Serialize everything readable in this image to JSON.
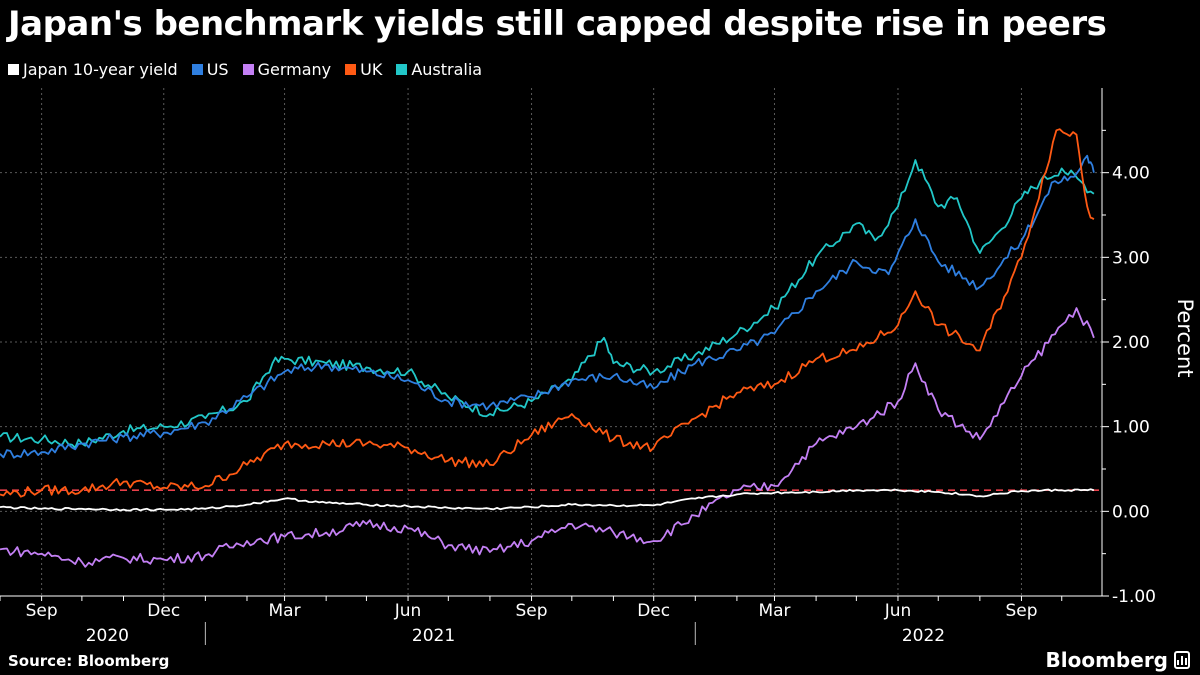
{
  "title": "Japan's benchmark yields still capped despite rise in peers",
  "source": "Source: Bloomberg",
  "brand": "Bloomberg",
  "chart_data": {
    "type": "line",
    "ylabel": "Percent",
    "ylim": [
      -1.0,
      5.0
    ],
    "y_ticks": [
      -1.0,
      0.0,
      1.0,
      2.0,
      3.0,
      4.0
    ],
    "y_tick_labels": [
      "-1.00",
      "0.00",
      "1.00",
      "2.00",
      "3.00",
      "4.00"
    ],
    "x_ticks": [
      {
        "date": "2020-09-01",
        "label": "Sep"
      },
      {
        "date": "2020-12-01",
        "label": "Dec"
      },
      {
        "date": "2021-03-01",
        "label": "Mar"
      },
      {
        "date": "2021-06-01",
        "label": "Jun"
      },
      {
        "date": "2021-09-01",
        "label": "Sep"
      },
      {
        "date": "2021-12-01",
        "label": "Dec"
      },
      {
        "date": "2022-03-01",
        "label": "Mar"
      },
      {
        "date": "2022-06-01",
        "label": "Jun"
      },
      {
        "date": "2022-09-01",
        "label": "Sep"
      }
    ],
    "year_labels": [
      {
        "label": "2020",
        "date": "2020-10-20"
      },
      {
        "label": "2021",
        "date": "2021-06-20"
      },
      {
        "label": "2022",
        "date": "2022-06-20"
      }
    ],
    "year_dividers": [
      "2021-01-01",
      "2022-01-01"
    ],
    "x_range": [
      "2020-08-01",
      "2022-10-31"
    ],
    "grid": true,
    "legend_position": "top-left",
    "reference_line": {
      "value": 0.25,
      "color": "#e8404a",
      "style": "dashed"
    },
    "series": [
      {
        "name": "Australia",
        "color": "#22c7c8",
        "points": [
          [
            "2020-08-01",
            0.88
          ],
          [
            "2020-09-01",
            0.85
          ],
          [
            "2020-10-01",
            0.8
          ],
          [
            "2020-11-01",
            0.95
          ],
          [
            "2020-12-01",
            1.0
          ],
          [
            "2021-01-01",
            1.1
          ],
          [
            "2021-02-01",
            1.3
          ],
          [
            "2021-02-20",
            1.75
          ],
          [
            "2021-03-01",
            1.8
          ],
          [
            "2021-04-01",
            1.75
          ],
          [
            "2021-05-01",
            1.7
          ],
          [
            "2021-06-01",
            1.65
          ],
          [
            "2021-07-01",
            1.35
          ],
          [
            "2021-08-01",
            1.15
          ],
          [
            "2021-09-01",
            1.3
          ],
          [
            "2021-10-01",
            1.55
          ],
          [
            "2021-10-25",
            2.05
          ],
          [
            "2021-11-01",
            1.75
          ],
          [
            "2021-12-01",
            1.65
          ],
          [
            "2022-01-01",
            1.85
          ],
          [
            "2022-02-01",
            2.1
          ],
          [
            "2022-03-01",
            2.4
          ],
          [
            "2022-04-01",
            3.0
          ],
          [
            "2022-05-01",
            3.4
          ],
          [
            "2022-05-15",
            3.2
          ],
          [
            "2022-06-01",
            3.6
          ],
          [
            "2022-06-14",
            4.15
          ],
          [
            "2022-07-01",
            3.6
          ],
          [
            "2022-07-15",
            3.7
          ],
          [
            "2022-08-01",
            3.05
          ],
          [
            "2022-08-15",
            3.3
          ],
          [
            "2022-09-01",
            3.7
          ],
          [
            "2022-09-15",
            3.9
          ],
          [
            "2022-10-01",
            4.05
          ],
          [
            "2022-10-15",
            3.9
          ],
          [
            "2022-10-25",
            3.75
          ]
        ]
      },
      {
        "name": "US",
        "color": "#2f7fe0",
        "points": [
          [
            "2020-08-01",
            0.68
          ],
          [
            "2020-09-01",
            0.7
          ],
          [
            "2020-10-01",
            0.8
          ],
          [
            "2020-11-01",
            0.88
          ],
          [
            "2020-12-01",
            0.93
          ],
          [
            "2021-01-01",
            1.05
          ],
          [
            "2021-02-01",
            1.35
          ],
          [
            "2021-03-01",
            1.65
          ],
          [
            "2021-03-31",
            1.73
          ],
          [
            "2021-05-01",
            1.65
          ],
          [
            "2021-06-01",
            1.55
          ],
          [
            "2021-07-01",
            1.3
          ],
          [
            "2021-08-01",
            1.25
          ],
          [
            "2021-09-01",
            1.35
          ],
          [
            "2021-10-01",
            1.55
          ],
          [
            "2021-11-01",
            1.6
          ],
          [
            "2021-12-01",
            1.45
          ],
          [
            "2022-01-01",
            1.75
          ],
          [
            "2022-02-01",
            1.9
          ],
          [
            "2022-03-01",
            2.1
          ],
          [
            "2022-04-01",
            2.6
          ],
          [
            "2022-05-01",
            2.95
          ],
          [
            "2022-05-25",
            2.8
          ],
          [
            "2022-06-14",
            3.45
          ],
          [
            "2022-07-01",
            2.95
          ],
          [
            "2022-08-01",
            2.65
          ],
          [
            "2022-09-01",
            3.2
          ],
          [
            "2022-09-26",
            3.9
          ],
          [
            "2022-10-10",
            3.95
          ],
          [
            "2022-10-20",
            4.2
          ],
          [
            "2022-10-25",
            4.0
          ]
        ]
      },
      {
        "name": "UK",
        "color": "#ff5a14",
        "points": [
          [
            "2020-08-01",
            0.2
          ],
          [
            "2020-09-01",
            0.25
          ],
          [
            "2020-10-01",
            0.25
          ],
          [
            "2020-11-01",
            0.35
          ],
          [
            "2020-12-01",
            0.28
          ],
          [
            "2021-01-01",
            0.3
          ],
          [
            "2021-02-01",
            0.55
          ],
          [
            "2021-03-01",
            0.8
          ],
          [
            "2021-04-01",
            0.8
          ],
          [
            "2021-05-01",
            0.8
          ],
          [
            "2021-06-01",
            0.75
          ],
          [
            "2021-07-01",
            0.6
          ],
          [
            "2021-08-01",
            0.55
          ],
          [
            "2021-09-01",
            0.9
          ],
          [
            "2021-10-01",
            1.15
          ],
          [
            "2021-11-01",
            0.85
          ],
          [
            "2021-12-01",
            0.75
          ],
          [
            "2022-01-01",
            1.1
          ],
          [
            "2022-02-01",
            1.4
          ],
          [
            "2022-03-01",
            1.5
          ],
          [
            "2022-04-01",
            1.8
          ],
          [
            "2022-05-01",
            1.9
          ],
          [
            "2022-06-01",
            2.2
          ],
          [
            "2022-06-14",
            2.6
          ],
          [
            "2022-07-01",
            2.2
          ],
          [
            "2022-08-01",
            1.9
          ],
          [
            "2022-09-01",
            3.0
          ],
          [
            "2022-09-27",
            4.5
          ],
          [
            "2022-10-12",
            4.45
          ],
          [
            "2022-10-20",
            3.6
          ],
          [
            "2022-10-25",
            3.45
          ]
        ]
      },
      {
        "name": "Germany",
        "color": "#c480f5",
        "points": [
          [
            "2020-08-01",
            -0.45
          ],
          [
            "2020-09-01",
            -0.5
          ],
          [
            "2020-10-01",
            -0.6
          ],
          [
            "2020-11-01",
            -0.55
          ],
          [
            "2020-12-01",
            -0.57
          ],
          [
            "2021-01-01",
            -0.52
          ],
          [
            "2021-02-01",
            -0.35
          ],
          [
            "2021-03-01",
            -0.3
          ],
          [
            "2021-04-01",
            -0.25
          ],
          [
            "2021-05-01",
            -0.15
          ],
          [
            "2021-06-01",
            -0.2
          ],
          [
            "2021-07-01",
            -0.4
          ],
          [
            "2021-08-01",
            -0.48
          ],
          [
            "2021-09-01",
            -0.35
          ],
          [
            "2021-10-01",
            -0.15
          ],
          [
            "2021-11-01",
            -0.25
          ],
          [
            "2021-12-01",
            -0.35
          ],
          [
            "2022-01-01",
            -0.05
          ],
          [
            "2022-02-01",
            0.25
          ],
          [
            "2022-03-01",
            0.3
          ],
          [
            "2022-04-01",
            0.8
          ],
          [
            "2022-05-01",
            1.0
          ],
          [
            "2022-06-01",
            1.3
          ],
          [
            "2022-06-14",
            1.75
          ],
          [
            "2022-07-01",
            1.2
          ],
          [
            "2022-08-01",
            0.85
          ],
          [
            "2022-09-01",
            1.6
          ],
          [
            "2022-10-01",
            2.2
          ],
          [
            "2022-10-12",
            2.4
          ],
          [
            "2022-10-25",
            2.05
          ]
        ]
      },
      {
        "name": "Japan 10-year yield",
        "color": "#ffffff",
        "points": [
          [
            "2020-08-01",
            0.05
          ],
          [
            "2020-09-01",
            0.03
          ],
          [
            "2020-10-01",
            0.03
          ],
          [
            "2020-11-01",
            0.02
          ],
          [
            "2020-12-01",
            0.02
          ],
          [
            "2021-01-01",
            0.03
          ],
          [
            "2021-02-01",
            0.08
          ],
          [
            "2021-03-01",
            0.15
          ],
          [
            "2021-04-01",
            0.1
          ],
          [
            "2021-05-01",
            0.08
          ],
          [
            "2021-06-01",
            0.06
          ],
          [
            "2021-07-01",
            0.04
          ],
          [
            "2021-08-01",
            0.03
          ],
          [
            "2021-09-01",
            0.05
          ],
          [
            "2021-10-01",
            0.08
          ],
          [
            "2021-11-01",
            0.07
          ],
          [
            "2021-12-01",
            0.07
          ],
          [
            "2022-01-01",
            0.15
          ],
          [
            "2022-02-01",
            0.2
          ],
          [
            "2022-03-01",
            0.22
          ],
          [
            "2022-04-01",
            0.23
          ],
          [
            "2022-05-01",
            0.25
          ],
          [
            "2022-06-01",
            0.25
          ],
          [
            "2022-07-01",
            0.23
          ],
          [
            "2022-08-01",
            0.18
          ],
          [
            "2022-09-01",
            0.24
          ],
          [
            "2022-10-01",
            0.25
          ],
          [
            "2022-10-25",
            0.25
          ]
        ]
      }
    ]
  }
}
